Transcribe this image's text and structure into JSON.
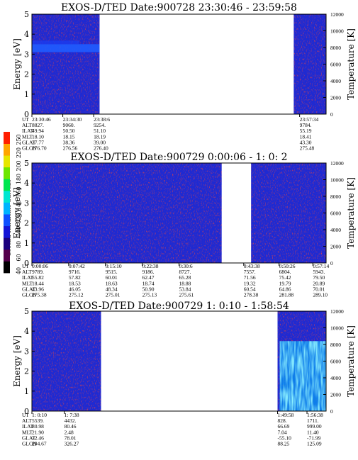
{
  "colorbar": {
    "title": "Second Harmonic Current",
    "ticks": [
      "40",
      "60",
      "80",
      "100",
      "120",
      "140",
      "160",
      "180",
      "200",
      "220",
      "250"
    ],
    "colors": [
      "#000000",
      "#55004b",
      "#1a007e",
      "#1414d6",
      "#0f50ff",
      "#00b4ff",
      "#00e6d2",
      "#00e650",
      "#6ee600",
      "#e6e600",
      "#ffa500",
      "#ff1e00"
    ]
  },
  "chart_data": [
    {
      "type": "heatmap",
      "title": "EXOS-D/TED   Date:900728  23:30:46 - 23:59:58",
      "ylabel": "Energy [eV]",
      "ylabel2": "Temperature [K]",
      "ylim": [
        0,
        5
      ],
      "ylim2": [
        0,
        12000
      ],
      "yticks": [
        "0",
        "1",
        "2",
        "3",
        "4",
        "5"
      ],
      "y2ticks": [
        "0",
        "2000",
        "4000",
        "6000",
        "8000",
        "10000",
        "12000"
      ],
      "data_segments": [
        [
          0.0,
          0.23
        ],
        [
          0.89,
          1.0
        ]
      ],
      "band": {
        "energy_center": 3.3,
        "half_width": 0.2,
        "segment": 0
      },
      "warm_region": null,
      "orbit_labels": [
        "UT",
        "ALT",
        "ILAT",
        "MLT",
        "GLAT",
        "GLON"
      ],
      "orbit_columns": [
        {
          "pos": 0.0,
          "values": [
            "23:30:46",
            "8827.",
            "49.94",
            "18.10",
            "37.77",
            "276.70"
          ]
        },
        {
          "pos": 0.105,
          "values": [
            "23:34:30",
            "9060.",
            "50.50",
            "18.15",
            "38.36",
            "276.56"
          ]
        },
        {
          "pos": 0.21,
          "values": [
            "23:38:6",
            "9254.",
            "51.10",
            "18.19",
            "39.00",
            "276.40"
          ]
        },
        {
          "pos": 0.91,
          "values": [
            "23:57:34",
            "9784.",
            "55.19",
            "18.41",
            "43.30",
            "275.48"
          ]
        }
      ]
    },
    {
      "type": "heatmap",
      "title": "EXOS-D/TED   Date:900729  0:00:06 - 1: 0: 2",
      "ylabel": "Energy [eV]",
      "ylabel2": "Temperature [K]",
      "ylim": [
        0,
        5
      ],
      "ylim2": [
        0,
        12000
      ],
      "yticks": [
        "0",
        "1",
        "2",
        "3",
        "4",
        "5"
      ],
      "y2ticks": [
        "0",
        "2000",
        "4000",
        "6000",
        "8000",
        "10000",
        "12000"
      ],
      "data_segments": [
        [
          0.0,
          0.645
        ],
        [
          0.745,
          1.0
        ]
      ],
      "band": null,
      "warm_region": null,
      "orbit_labels": [
        "UT",
        "ALT",
        "ILAT",
        "MLT",
        "GLAT",
        "GLON"
      ],
      "orbit_columns": [
        {
          "pos": 0.0,
          "values": [
            "0:00:06",
            "9789.",
            "55.82",
            "18.44",
            "43.96",
            "275.38"
          ]
        },
        {
          "pos": 0.125,
          "values": [
            "0:07:42",
            "9716.",
            "57.82",
            "18.53",
            "46.05",
            "275.12"
          ]
        },
        {
          "pos": 0.25,
          "values": [
            "0:15:10",
            "9515.",
            "60.01",
            "18.63",
            "48.34",
            "275.01"
          ]
        },
        {
          "pos": 0.375,
          "values": [
            "0:22:38",
            "9186.",
            "62.47",
            "18.74",
            "50.90",
            "275.13"
          ]
        },
        {
          "pos": 0.5,
          "values": [
            "0:30:6",
            "8727.",
            "65.28",
            "18.88",
            "53.84",
            "275.61"
          ]
        },
        {
          "pos": 0.72,
          "values": [
            "0:43:38",
            "7557.",
            "71.56",
            "19.32",
            "60.54",
            "278.38"
          ]
        },
        {
          "pos": 0.84,
          "values": [
            "0:50:26",
            "6804.",
            "75.42",
            "19.79",
            "64.86",
            "281.88"
          ]
        },
        {
          "pos": 0.955,
          "values": [
            "0:57:14",
            "5943.",
            "79.50",
            "20.89",
            "70.01",
            "289.10"
          ]
        }
      ]
    },
    {
      "type": "heatmap",
      "title": "EXOS-D/TED   Date:900729  1: 0:10 - 1:58:54",
      "ylabel": "Energy [eV]",
      "ylabel2": "Temperature [K]",
      "ylim": [
        0,
        5
      ],
      "ylim2": [
        0,
        12000
      ],
      "yticks": [
        "0",
        "1",
        "2",
        "3",
        "4",
        "5"
      ],
      "y2ticks": [
        "0",
        "2000",
        "4000",
        "6000",
        "8000",
        "10000",
        "12000"
      ],
      "data_segments": [
        [
          0.0,
          0.235
        ],
        [
          0.835,
          1.0
        ]
      ],
      "band": null,
      "warm_region": {
        "segment": 1,
        "energy_min": 0.0,
        "energy_max": 3.5
      },
      "orbit_labels": [
        "UT",
        "ALT",
        "ILAT",
        "MLT",
        "GLAT",
        "GLON"
      ],
      "orbit_columns": [
        {
          "pos": 0.0,
          "values": [
            "1: 0:10",
            "5539.",
            "80.98",
            "21.90",
            "72.46",
            "294.67"
          ]
        },
        {
          "pos": 0.11,
          "values": [
            "1: 7:38",
            "4432.",
            "80.46",
            "2.48",
            "78.01",
            "326.27"
          ]
        },
        {
          "pos": 0.835,
          "values": [
            "1:49:58",
            "828.",
            "66.69",
            "7.04",
            "-55.10",
            "88.25"
          ]
        },
        {
          "pos": 0.935,
          "values": [
            "1:56:38",
            "1711.",
            "999.00",
            "11.40",
            "-71.99",
            "125.09"
          ]
        }
      ]
    }
  ]
}
